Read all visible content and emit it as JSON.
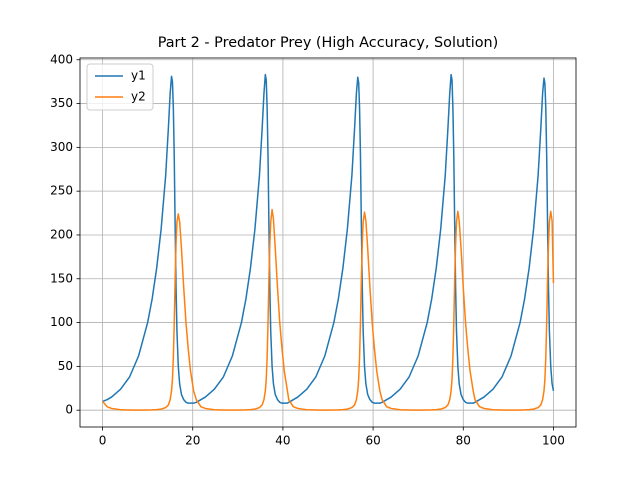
{
  "chart_data": {
    "type": "line",
    "title": "Part 2 - Predator Prey (High Accuracy, Solution)",
    "x": [
      0,
      1,
      2,
      4,
      6,
      8,
      10,
      11,
      12,
      13,
      14,
      14.6,
      15,
      15.3,
      15.5,
      15.7,
      15.9,
      16.1,
      16.3,
      16.5,
      16.8,
      17.1,
      17.5,
      18,
      18.5,
      19,
      19.5,
      20.2,
      20.8,
      21.8,
      22.8,
      24.8,
      26.8,
      28.8,
      30.8,
      31.8,
      32.8,
      33.8,
      34.8,
      35.4,
      35.8,
      36.1,
      36.3,
      36.5,
      36.7,
      36.9,
      37.1,
      37.3,
      37.6,
      37.9,
      38.3,
      38.8,
      39.3,
      39.8,
      40.3,
      41.0,
      41.3,
      42.3,
      43.3,
      45.3,
      47.3,
      49.3,
      51.3,
      52.3,
      53.3,
      54.3,
      55.3,
      55.9,
      56.3,
      56.6,
      56.8,
      57.0,
      57.2,
      57.4,
      57.6,
      57.8,
      58.1,
      58.4,
      58.8,
      59.3,
      59.8,
      60.3,
      60.8,
      61.5,
      62.0,
      63.0,
      64.0,
      66.0,
      68.0,
      70.0,
      72.0,
      73.0,
      74.0,
      75.0,
      76.0,
      76.6,
      77.0,
      77.3,
      77.5,
      77.7,
      77.9,
      78.1,
      78.3,
      78.5,
      78.8,
      79.1,
      79.5,
      80.0,
      80.5,
      81.0,
      81.5,
      82.2,
      82.6,
      83.6,
      84.6,
      86.6,
      88.6,
      90.6,
      92.6,
      93.6,
      94.6,
      95.6,
      96.6,
      97.2,
      97.6,
      97.9,
      98.1,
      98.3,
      98.5,
      98.7,
      98.9,
      99.1,
      99.4,
      99.7,
      100
    ],
    "series": [
      {
        "name": "y1",
        "color": "#1f77b4",
        "values": [
          10,
          12,
          15,
          24,
          38,
          62,
          100,
          127,
          162,
          207,
          268,
          322,
          362,
          381,
          375,
          345,
          290,
          210,
          140,
          90,
          50,
          30,
          18,
          12,
          9,
          8,
          8,
          8,
          9,
          12,
          15,
          24,
          38,
          62,
          100,
          127,
          162,
          207,
          268,
          322,
          362,
          383,
          377,
          345,
          290,
          210,
          140,
          90,
          50,
          30,
          18,
          12,
          9,
          8,
          8,
          8,
          9,
          12,
          15,
          24,
          38,
          62,
          100,
          127,
          162,
          207,
          268,
          322,
          362,
          380,
          374,
          345,
          290,
          210,
          140,
          90,
          50,
          30,
          18,
          12,
          9,
          8,
          8,
          8,
          9,
          12,
          15,
          24,
          38,
          62,
          100,
          127,
          162,
          207,
          268,
          322,
          362,
          383,
          377,
          345,
          290,
          210,
          140,
          90,
          50,
          30,
          18,
          12,
          9,
          8,
          8,
          8,
          9,
          12,
          15,
          24,
          38,
          62,
          100,
          127,
          162,
          207,
          268,
          322,
          362,
          379,
          373,
          345,
          290,
          210,
          140,
          90,
          50,
          30,
          22
        ]
      },
      {
        "name": "y2",
        "color": "#ff7f0e",
        "values": [
          10,
          4,
          2,
          0.5,
          0.2,
          0.1,
          0.2,
          0.3,
          0.6,
          1.2,
          3,
          6,
          12,
          22,
          35,
          60,
          100,
          150,
          190,
          215,
          224,
          215,
          185,
          140,
          100,
          70,
          45,
          22,
          12,
          4,
          2,
          0.5,
          0.2,
          0.1,
          0.2,
          0.3,
          0.6,
          1.2,
          3,
          6,
          12,
          22,
          35,
          60,
          100,
          150,
          190,
          215,
          229,
          218,
          185,
          140,
          100,
          70,
          45,
          22,
          12,
          4,
          2,
          0.5,
          0.2,
          0.1,
          0.2,
          0.3,
          0.6,
          1.2,
          3,
          6,
          12,
          22,
          35,
          60,
          100,
          150,
          190,
          215,
          226,
          216,
          185,
          140,
          100,
          70,
          45,
          22,
          12,
          4,
          2,
          0.5,
          0.2,
          0.1,
          0.2,
          0.3,
          0.6,
          1.2,
          3,
          6,
          12,
          22,
          35,
          60,
          100,
          150,
          190,
          215,
          227,
          216,
          185,
          140,
          100,
          70,
          45,
          22,
          12,
          4,
          2,
          0.5,
          0.2,
          0.1,
          0.2,
          0.3,
          0.6,
          1.2,
          3,
          6,
          12,
          22,
          35,
          60,
          100,
          150,
          190,
          215,
          227,
          216,
          145
        ]
      }
    ],
    "xlim": [
      -5,
      105
    ],
    "ylim": [
      -19.2,
      402
    ],
    "xticks": [
      0,
      20,
      40,
      60,
      80,
      100
    ],
    "yticks": [
      0,
      50,
      100,
      150,
      200,
      250,
      300,
      350,
      400
    ],
    "grid": true,
    "legend": "upper left"
  }
}
